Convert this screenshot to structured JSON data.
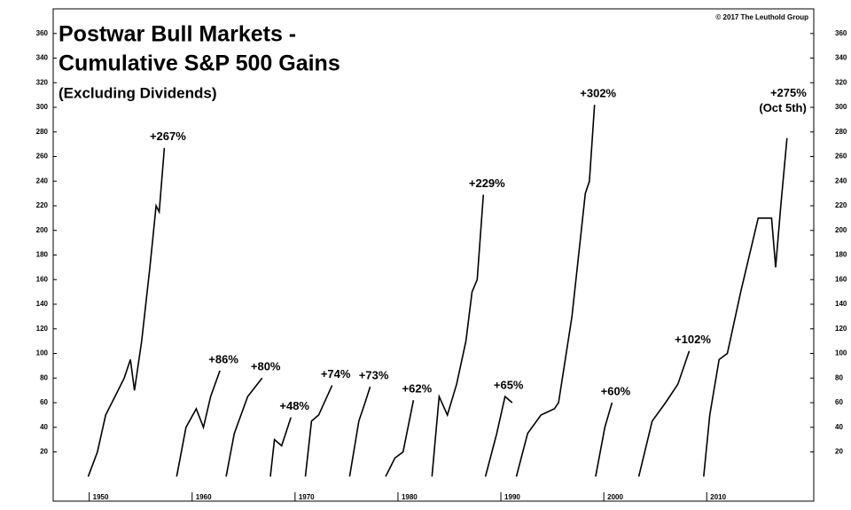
{
  "chart_data": {
    "type": "line",
    "title": "Postwar Bull Markets -",
    "subtitle": "Cumulative S&P 500 Gains",
    "note": "(Excluding Dividends)",
    "source": "© 2017 The Leuthold Group",
    "color": "#000000",
    "xlim": [
      1946.5,
      2020.4
    ],
    "ylim": [
      -20,
      380
    ],
    "xticks": [
      1950,
      1960,
      1970,
      1980,
      1990,
      2000,
      2010
    ],
    "yticks": [
      20,
      40,
      60,
      80,
      100,
      120,
      140,
      160,
      180,
      200,
      220,
      240,
      260,
      280,
      300,
      320,
      340,
      360
    ],
    "series": [
      {
        "annotation": "+267%",
        "x": [
          1949.9,
          1950.8,
          1951.6,
          1952.5,
          1953.4,
          1954.0,
          1954.4,
          1955.1,
          1955.9,
          1956.5,
          1956.8,
          1957.3
        ],
        "values": [
          0,
          20,
          50,
          65,
          80,
          95,
          70,
          110,
          170,
          220,
          215,
          267
        ]
      },
      {
        "annotation": "+86%",
        "x": [
          1958.5,
          1959.4,
          1960.4,
          1961.1,
          1961.8,
          1962.7
        ],
        "values": [
          0,
          40,
          55,
          40,
          65,
          86
        ]
      },
      {
        "annotation": "+80%",
        "x": [
          1963.3,
          1964.1,
          1965.4,
          1966.8
        ],
        "values": [
          0,
          35,
          65,
          80
        ]
      },
      {
        "annotation": "+48%",
        "x": [
          1967.6,
          1968.0,
          1968.7,
          1969.6
        ],
        "values": [
          0,
          30,
          25,
          48
        ]
      },
      {
        "annotation": "+74%",
        "x": [
          1971.0,
          1971.6,
          1972.3,
          1973.6
        ],
        "values": [
          0,
          45,
          50,
          74
        ]
      },
      {
        "annotation": "+73%",
        "x": [
          1975.3,
          1976.2,
          1976.8,
          1977.3
        ],
        "values": [
          0,
          45,
          60,
          73
        ]
      },
      {
        "annotation": "+62%",
        "x": [
          1978.8,
          1979.7,
          1980.5,
          1981.5
        ],
        "values": [
          0,
          15,
          20,
          62
        ]
      },
      {
        "annotation": "+229%",
        "x": [
          1983.3,
          1984.0,
          1984.8,
          1985.7,
          1986.6,
          1987.2,
          1987.7,
          1988.3
        ],
        "values": [
          0,
          65,
          50,
          75,
          110,
          150,
          160,
          229
        ]
      },
      {
        "annotation": "+65%",
        "x": [
          1988.5,
          1989.6,
          1990.4,
          1991.1
        ],
        "values": [
          0,
          35,
          65,
          60
        ]
      },
      {
        "annotation": "+302%",
        "x": [
          1991.5,
          1992.6,
          1993.9,
          1995.2,
          1995.6,
          1996.9,
          1998.2,
          1998.6,
          1999.1
        ],
        "values": [
          0,
          35,
          50,
          55,
          60,
          130,
          230,
          240,
          302
        ]
      },
      {
        "annotation": "+60%",
        "x": [
          1999.2,
          2000.1,
          2000.8
        ],
        "values": [
          0,
          40,
          60
        ]
      },
      {
        "annotation": "+102%",
        "x": [
          2003.4,
          2004.7,
          2006.0,
          2007.2,
          2008.3
        ],
        "values": [
          0,
          45,
          60,
          75,
          102
        ]
      },
      {
        "annotation": "+275%",
        "annotation_note": "(Oct 5th)",
        "x": [
          2009.7,
          2010.3,
          2011.2,
          2012.0,
          2013.3,
          2015.0,
          2016.3,
          2016.7,
          2017.2,
          2017.8
        ],
        "values": [
          0,
          50,
          95,
          100,
          150,
          210,
          210,
          170,
          220,
          275
        ]
      }
    ]
  }
}
